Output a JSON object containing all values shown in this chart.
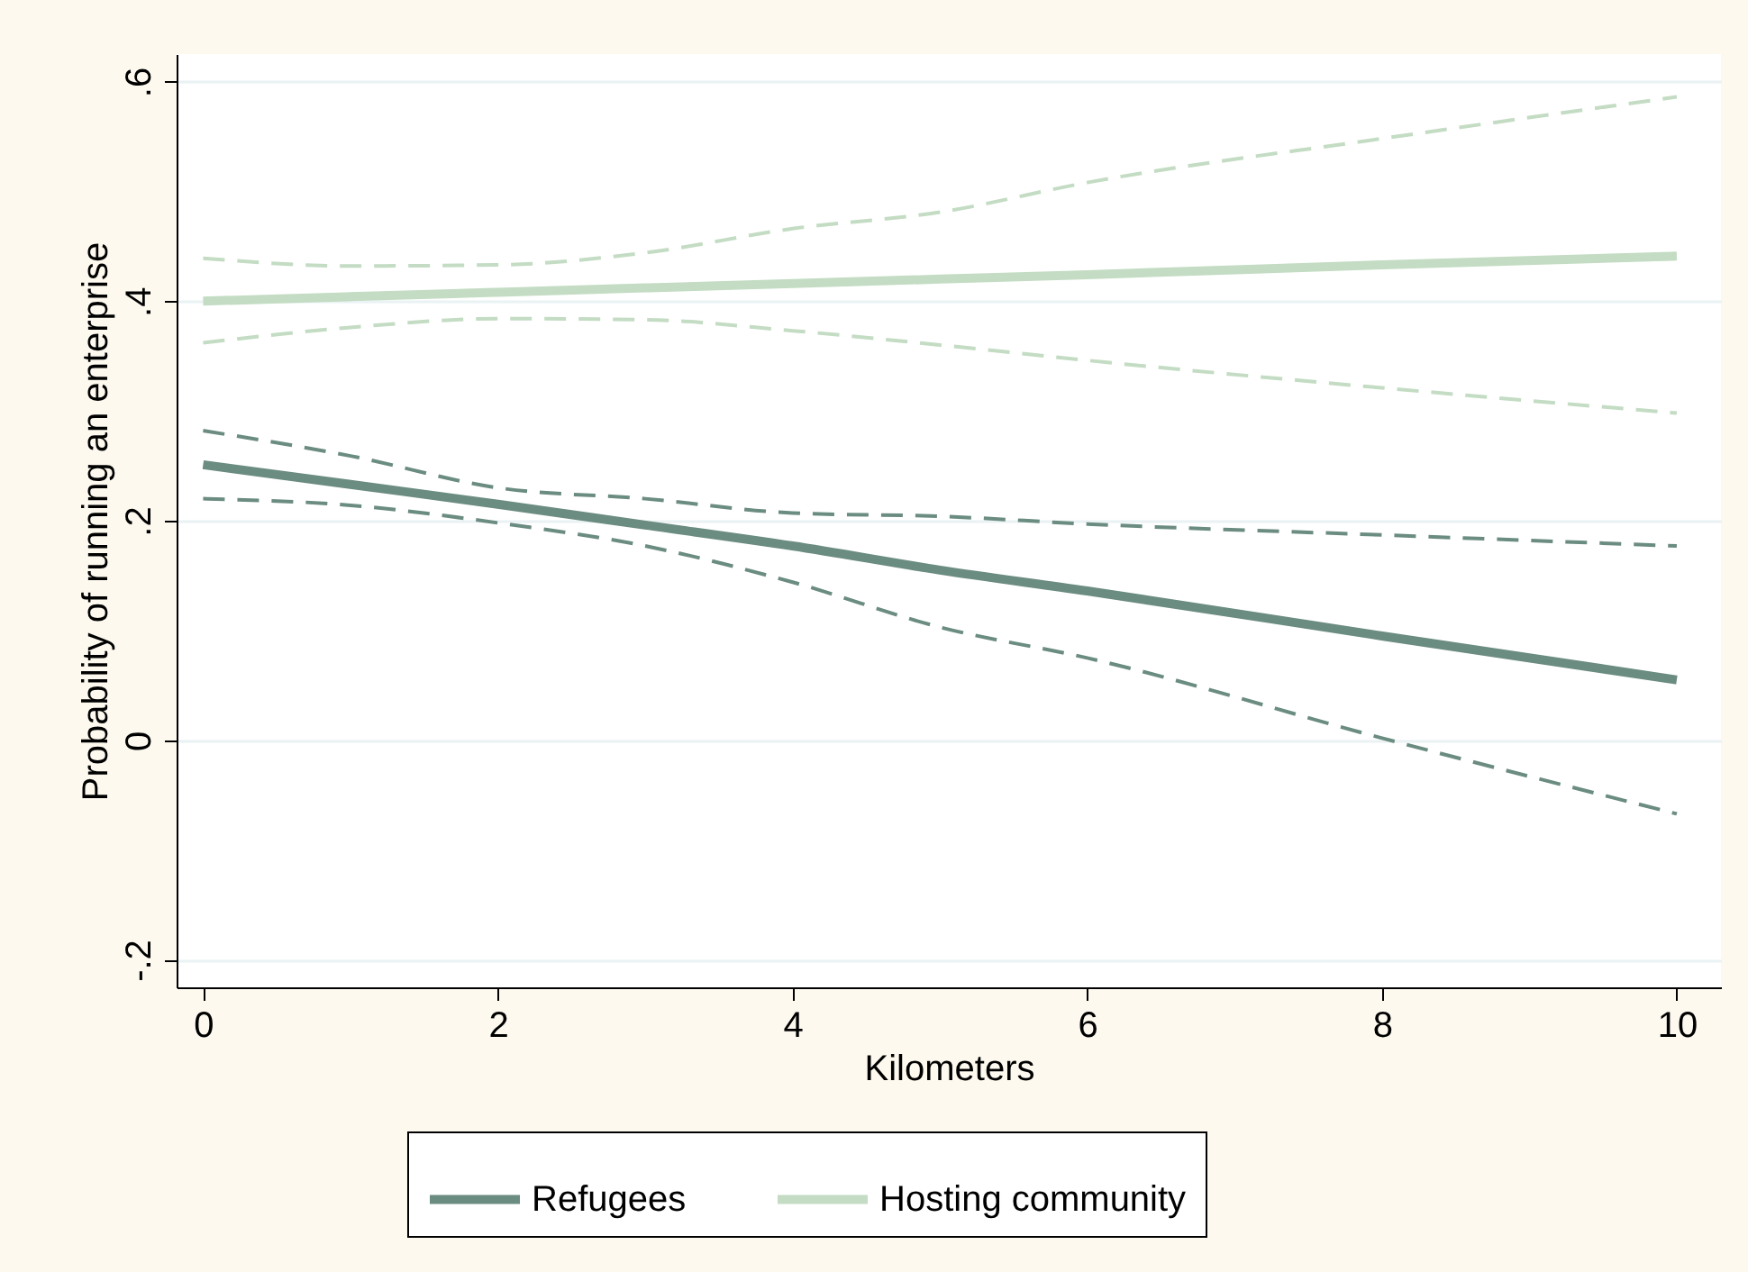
{
  "chart_data": {
    "type": "line",
    "xlabel": "Kilometers",
    "ylabel": "Probability of running an enterprise",
    "xlim": [
      -0.18,
      10.3
    ],
    "xticks": [
      0,
      2,
      4,
      6,
      8,
      10
    ],
    "ylim": [
      -0.225,
      0.625
    ],
    "yticks": [
      {
        "value": -0.2,
        "label": "-.2"
      },
      {
        "value": 0,
        "label": "0"
      },
      {
        "value": 0.2,
        "label": ".2"
      },
      {
        "value": 0.4,
        "label": ".4"
      },
      {
        "value": 0.6,
        "label": ".6"
      }
    ],
    "grid": "y",
    "legend": "bottom",
    "line_style": "solid",
    "marker": "none",
    "series": [
      {
        "name": "Refugees",
        "color": "#6b8c80",
        "x": [
          0,
          1,
          2,
          3,
          4,
          5,
          6,
          8,
          10
        ],
        "values": [
          0.251,
          0.233,
          0.215,
          0.196,
          0.177,
          0.155,
          0.136,
          0.095,
          0.055
        ]
      },
      {
        "name": "Hosting community",
        "color": "#c3dcc3",
        "x": [
          0,
          1,
          2,
          3,
          4,
          5,
          6,
          8,
          10
        ],
        "values": [
          0.4,
          0.404,
          0.408,
          0.412,
          0.416,
          0.42,
          0.424,
          0.433,
          0.441
        ]
      },
      {
        "color": "#6b8c80",
        "line_style": "dashed",
        "x": [
          0,
          1,
          2,
          3,
          4,
          5,
          6,
          8,
          10
        ],
        "values": [
          0.22,
          0.214,
          0.198,
          0.177,
          0.144,
          0.103,
          0.075,
          0.002,
          -0.067
        ]
      },
      {
        "color": "#6b8c80",
        "line_style": "dashed",
        "x": [
          0,
          1,
          2,
          3,
          4,
          5,
          6,
          8,
          10
        ],
        "values": [
          0.282,
          0.259,
          0.23,
          0.22,
          0.207,
          0.204,
          0.197,
          0.187,
          0.177
        ]
      },
      {
        "color": "#c3dcc3",
        "line_style": "dashed",
        "x": [
          0,
          1,
          2,
          3,
          4,
          5,
          6,
          8,
          10
        ],
        "values": [
          0.362,
          0.376,
          0.384,
          0.383,
          0.373,
          0.36,
          0.346,
          0.321,
          0.298
        ]
      },
      {
        "color": "#c3dcc3",
        "line_style": "dashed",
        "x": [
          0,
          1,
          2,
          3,
          4,
          5,
          6,
          8,
          10
        ],
        "values": [
          0.439,
          0.432,
          0.433,
          0.444,
          0.466,
          0.481,
          0.508,
          0.548,
          0.586
        ]
      }
    ]
  }
}
